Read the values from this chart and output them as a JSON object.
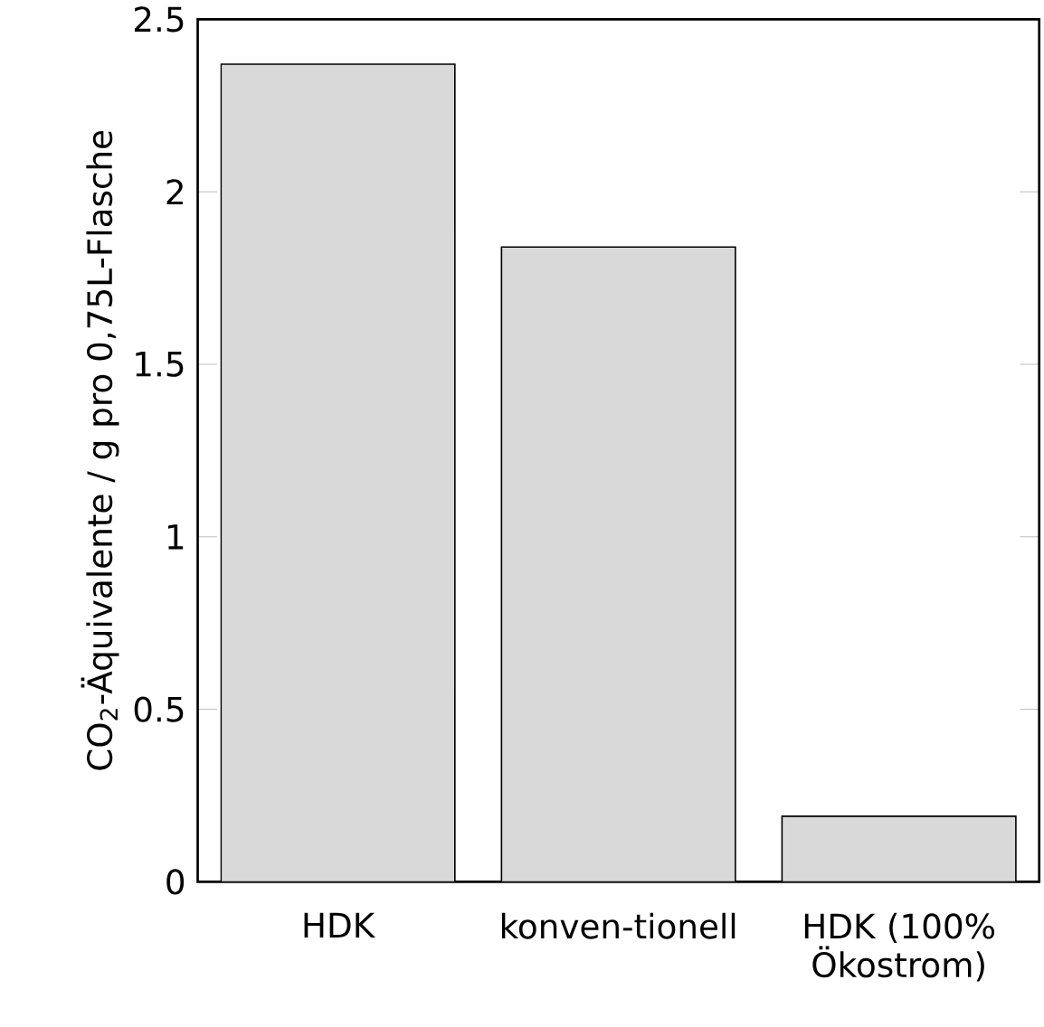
{
  "chart_data": {
    "type": "bar",
    "ylabel": "CO$_{2}$-Äquivalente / g pro 0,75L-Flasche",
    "categories": [
      "HDK",
      "konven-tionell",
      "HDK (100% Ökostrom)"
    ],
    "values": [
      2.37,
      1.84,
      0.19
    ],
    "color": "#d9d9d9",
    "ylim": [
      0,
      2.5
    ],
    "yticks": [
      0,
      0.5,
      1,
      1.5,
      2,
      2.5
    ]
  }
}
